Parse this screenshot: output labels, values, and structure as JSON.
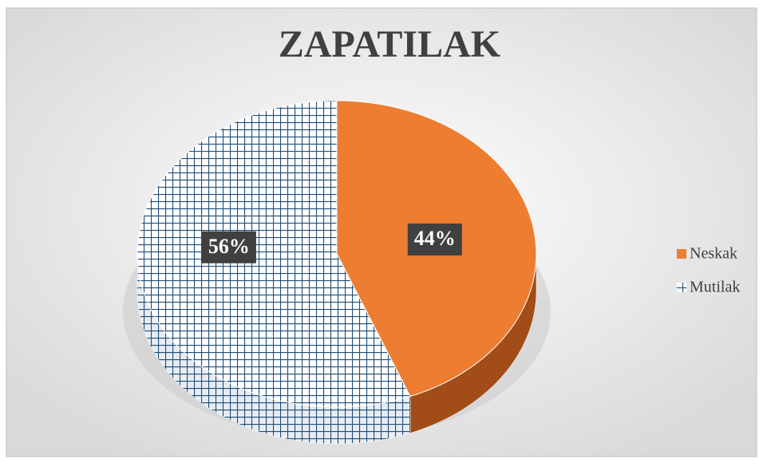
{
  "chart_data": {
    "type": "pie",
    "title": "ZAPATILAK",
    "categories": [
      "Neskak",
      "Mutilak"
    ],
    "values": [
      44,
      56
    ],
    "value_labels": [
      "44%",
      "56%"
    ],
    "colors": [
      "#ed7d31",
      "#1f4e79"
    ],
    "legend": "right"
  }
}
